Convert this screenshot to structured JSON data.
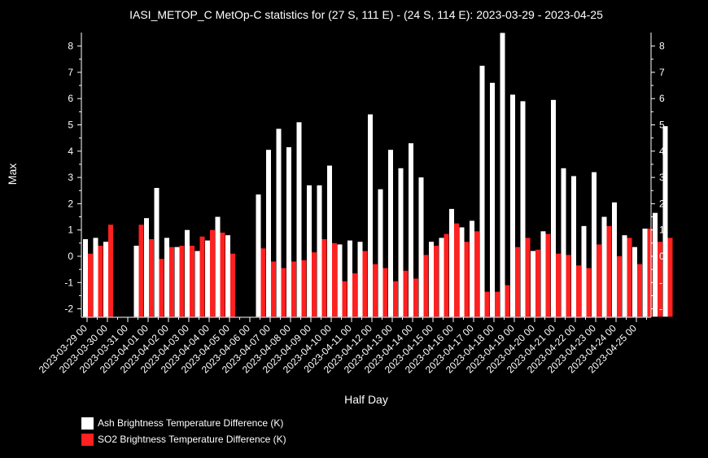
{
  "chart_data": {
    "type": "bar",
    "title": "IASI_METOP_C MetOp-C statistics for (27 S, 111 E) - (24 S, 114 E): 2023-03-29 - 2023-04-25",
    "xlabel": "Half Day",
    "ylabel": "Max",
    "ylim": [
      -2.3,
      8.5
    ],
    "yticks": [
      -2,
      -1,
      0,
      1,
      2,
      3,
      4,
      5,
      6,
      7,
      8
    ],
    "ytick_labels": [
      "-2",
      "-1",
      "0",
      "1",
      "2",
      "3",
      "4",
      "5",
      "6",
      "7",
      "8"
    ],
    "grid": false,
    "legend_position": "bottom-left",
    "xtick_labels": [
      "2023-03-29 00",
      "2023-03-30 00",
      "2023-03-31 00",
      "2023-04-01 00",
      "2023-04-02 00",
      "2023-04-03 00",
      "2023-04-04 00",
      "2023-04-05 00",
      "2023-04-06 00",
      "2023-04-07 00",
      "2023-04-08 00",
      "2023-04-09 00",
      "2023-04-10 00",
      "2023-04-11 00",
      "2023-04-12 00",
      "2023-04-13 00",
      "2023-04-14 00",
      "2023-04-15 00",
      "2023-04-16 00",
      "2023-04-17 00",
      "2023-04-18 00",
      "2023-04-19 00",
      "2023-04-20 00",
      "2023-04-21 00",
      "2023-04-22 00",
      "2023-04-23 00",
      "2023-04-24 00",
      "2023-04-25 00"
    ],
    "series": [
      {
        "name": "Ash Brightness Temperature Difference (K)",
        "color": "#ffffff",
        "values": [
          0.65,
          0.7,
          0.55,
          null,
          null,
          0.4,
          1.45,
          2.6,
          0.7,
          0.35,
          1.0,
          0.2,
          0.6,
          1.5,
          0.8,
          null,
          null,
          2.35,
          4.05,
          4.85,
          4.15,
          5.1,
          2.7,
          2.7,
          3.45,
          0.45,
          0.6,
          0.55,
          5.4,
          2.55,
          4.05,
          3.35,
          4.3,
          3.0,
          0.55,
          0.7,
          1.8,
          1.1,
          1.35,
          7.25,
          6.6,
          8.5,
          6.15,
          5.9,
          0.2,
          0.95,
          5.95,
          3.35,
          3.05,
          1.15,
          3.2,
          1.5,
          2.05,
          0.8,
          0.35,
          1.05,
          1.65,
          4.95
        ]
      },
      {
        "name": "SO2 Brightness Temperature Difference (K)",
        "color": "#ff2020",
        "values": [
          0.1,
          0.4,
          1.2,
          null,
          null,
          1.2,
          0.65,
          -0.1,
          0.35,
          0.4,
          0.4,
          0.75,
          1.0,
          0.9,
          0.1,
          null,
          null,
          0.3,
          -0.2,
          -0.45,
          -0.2,
          -0.15,
          0.15,
          0.65,
          0.5,
          -0.95,
          -0.65,
          0.2,
          -0.3,
          -0.45,
          -0.95,
          -0.55,
          -0.85,
          0.05,
          0.4,
          0.85,
          1.25,
          0.55,
          0.95,
          -1.35,
          -1.35,
          -1.1,
          0.35,
          0.7,
          0.25,
          0.85,
          0.1,
          0.05,
          -0.35,
          -0.45,
          0.45,
          1.15,
          0.0,
          0.7,
          -0.3,
          1.05,
          0.55,
          0.7
        ]
      }
    ]
  }
}
